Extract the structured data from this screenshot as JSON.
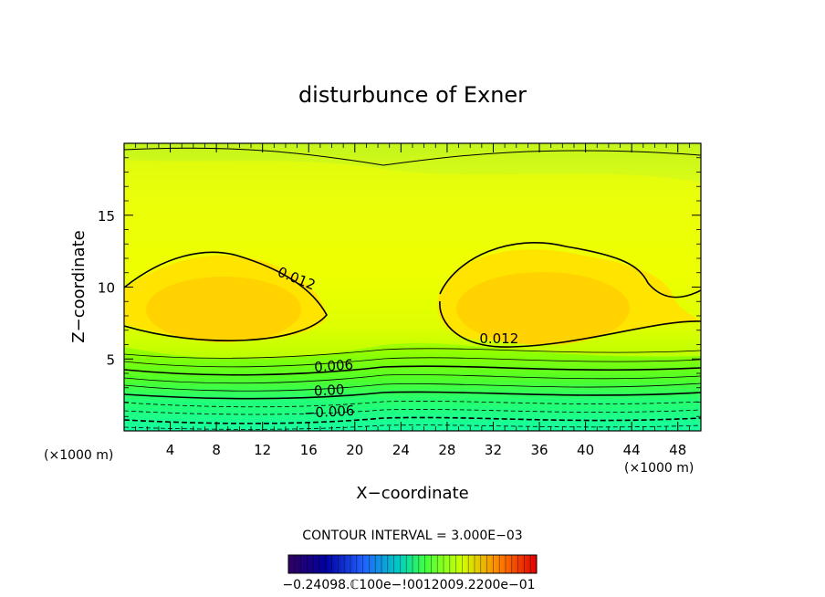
{
  "chart_data": {
    "type": "contour",
    "title": "disturbunce of Exner",
    "xlabel": "X−coordinate",
    "ylabel": "Z−coordinate",
    "x_unit_left": "(×1000 m)",
    "x_unit_right": "(×1000 m)",
    "xlim": [
      0,
      50
    ],
    "ylim": [
      0,
      20
    ],
    "x_ticks": [
      "4",
      "8",
      "12",
      "16",
      "20",
      "24",
      "28",
      "32",
      "36",
      "40",
      "44",
      "48"
    ],
    "x_tick_values": [
      4,
      8,
      12,
      16,
      20,
      24,
      28,
      32,
      36,
      40,
      44,
      48
    ],
    "y_ticks": [
      "5",
      "10",
      "15"
    ],
    "y_tick_values": [
      5,
      10,
      15
    ],
    "contour_interval_text": "CONTOUR INTERVAL = 3.000E−03",
    "contour_labels": [
      {
        "text": "0.012",
        "x": 14.8,
        "z": 10.3,
        "angle": 22
      },
      {
        "text": "0.012",
        "x": 32.5,
        "z": 6.1,
        "angle": 0
      },
      {
        "text": "0.006",
        "x": 18.2,
        "z": 4.2,
        "angle": -4
      },
      {
        "text": "0.00",
        "x": 17.8,
        "z": 2.5,
        "angle": -3
      },
      {
        "text": "−0.006",
        "x": 17.8,
        "z": 1.0,
        "angle": -3
      }
    ],
    "colorbar_labels_text": "−0.24098.ℂ100e−!0012009.2200e−01",
    "colorbar_range": [
      -0.024,
      0.024
    ],
    "grid": false,
    "colors": {
      "low": "#00ffd8",
      "mid": "#e6ff00",
      "high": "#ffd000",
      "axis": "#000000"
    }
  }
}
